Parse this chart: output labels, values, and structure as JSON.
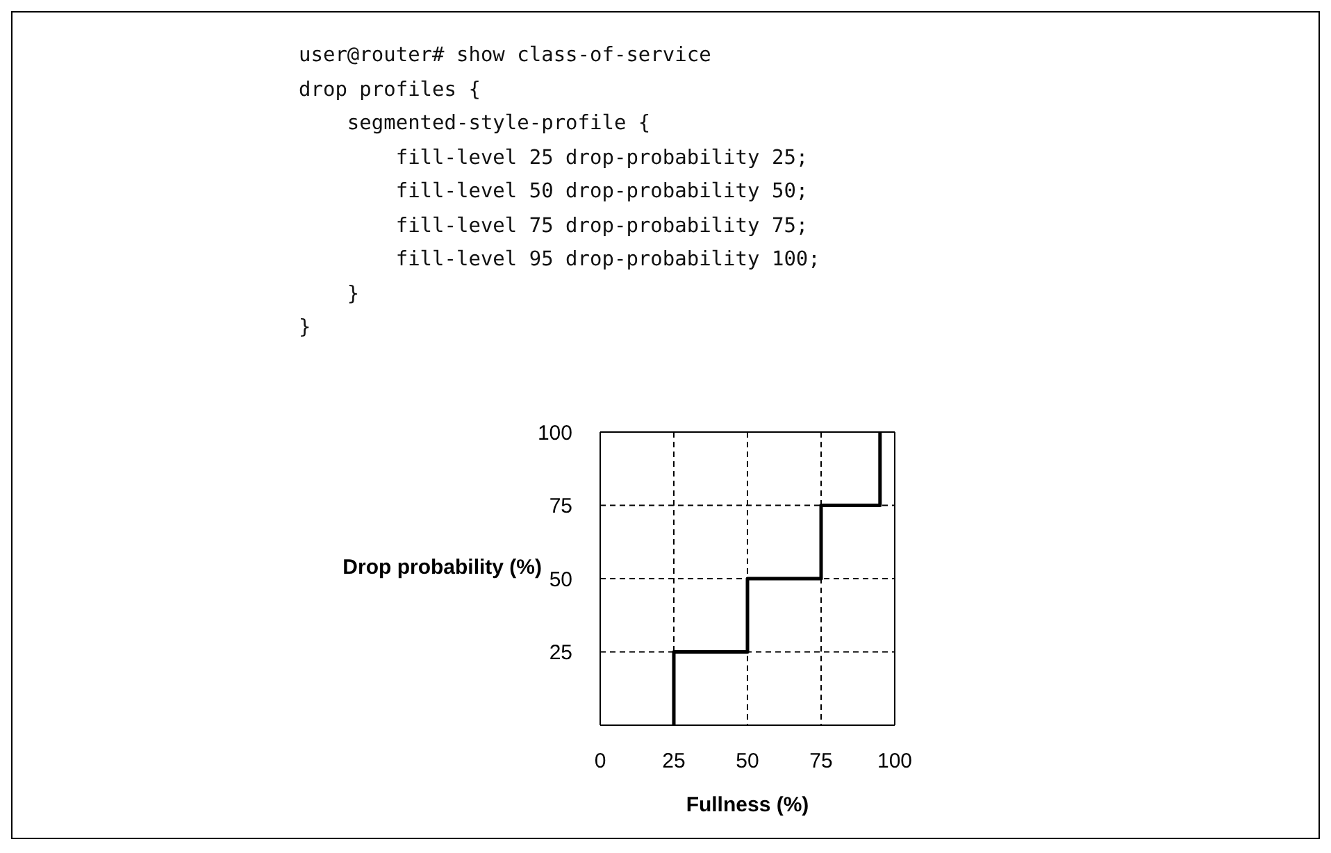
{
  "chart_data": {
    "type": "step",
    "annotations": [
      "user@router# show class-of-service",
      "drop profiles {",
      "    segmented-style-profile {",
      "        fill-level 25 drop-probability 25;",
      "        fill-level 50 drop-probability 50;",
      "        fill-level 75 drop-probability 75;",
      "        fill-level 95 drop-probability 100;",
      "    }",
      "}"
    ],
    "xlabel": "Fullness (%)",
    "ylabel": "Drop probability (%)",
    "x": [
      25,
      25,
      50,
      75,
      95
    ],
    "values": [
      0,
      25,
      50,
      75,
      100
    ],
    "color": "#000000",
    "xlim": [
      0,
      100
    ],
    "xticks": [
      0,
      25,
      50,
      75,
      100
    ],
    "ylim": [
      0,
      100
    ],
    "yticks": [
      25,
      50,
      75,
      100
    ],
    "grid": true
  }
}
